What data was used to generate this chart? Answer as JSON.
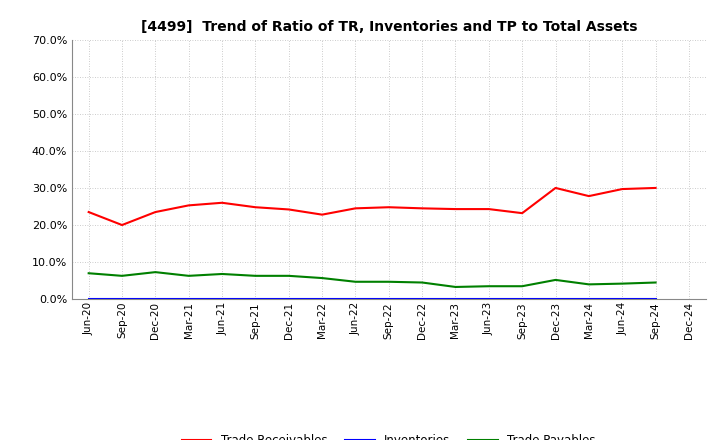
{
  "title": "[4499]  Trend of Ratio of TR, Inventories and TP to Total Assets",
  "x_labels": [
    "Jun-20",
    "Sep-20",
    "Dec-20",
    "Mar-21",
    "Jun-21",
    "Sep-21",
    "Dec-21",
    "Mar-22",
    "Jun-22",
    "Sep-22",
    "Dec-22",
    "Mar-23",
    "Jun-23",
    "Sep-23",
    "Dec-23",
    "Mar-24",
    "Jun-24",
    "Sep-24",
    "Dec-24"
  ],
  "trade_receivables": [
    0.235,
    0.2,
    0.235,
    0.253,
    0.26,
    0.248,
    0.242,
    0.228,
    0.245,
    0.248,
    0.245,
    0.243,
    0.243,
    0.232,
    0.3,
    0.278,
    0.297,
    0.3,
    null
  ],
  "inventories": [
    0.001,
    0.001,
    0.001,
    0.001,
    0.001,
    0.001,
    0.001,
    0.001,
    0.001,
    0.001,
    0.001,
    0.001,
    0.001,
    0.001,
    0.001,
    0.001,
    0.001,
    0.001,
    null
  ],
  "trade_payables": [
    0.07,
    0.063,
    0.073,
    0.063,
    0.068,
    0.063,
    0.063,
    0.057,
    0.047,
    0.047,
    0.045,
    0.033,
    0.035,
    0.035,
    0.052,
    0.04,
    0.042,
    0.045,
    null
  ],
  "ylim": [
    0.0,
    0.7
  ],
  "yticks": [
    0.0,
    0.1,
    0.2,
    0.3,
    0.4,
    0.5,
    0.6,
    0.7
  ],
  "line_colors": {
    "trade_receivables": "#FF0000",
    "inventories": "#0000FF",
    "trade_payables": "#008000"
  },
  "legend_labels": [
    "Trade Receivables",
    "Inventories",
    "Trade Payables"
  ],
  "background_color": "#FFFFFF",
  "grid_color": "#AAAAAA"
}
